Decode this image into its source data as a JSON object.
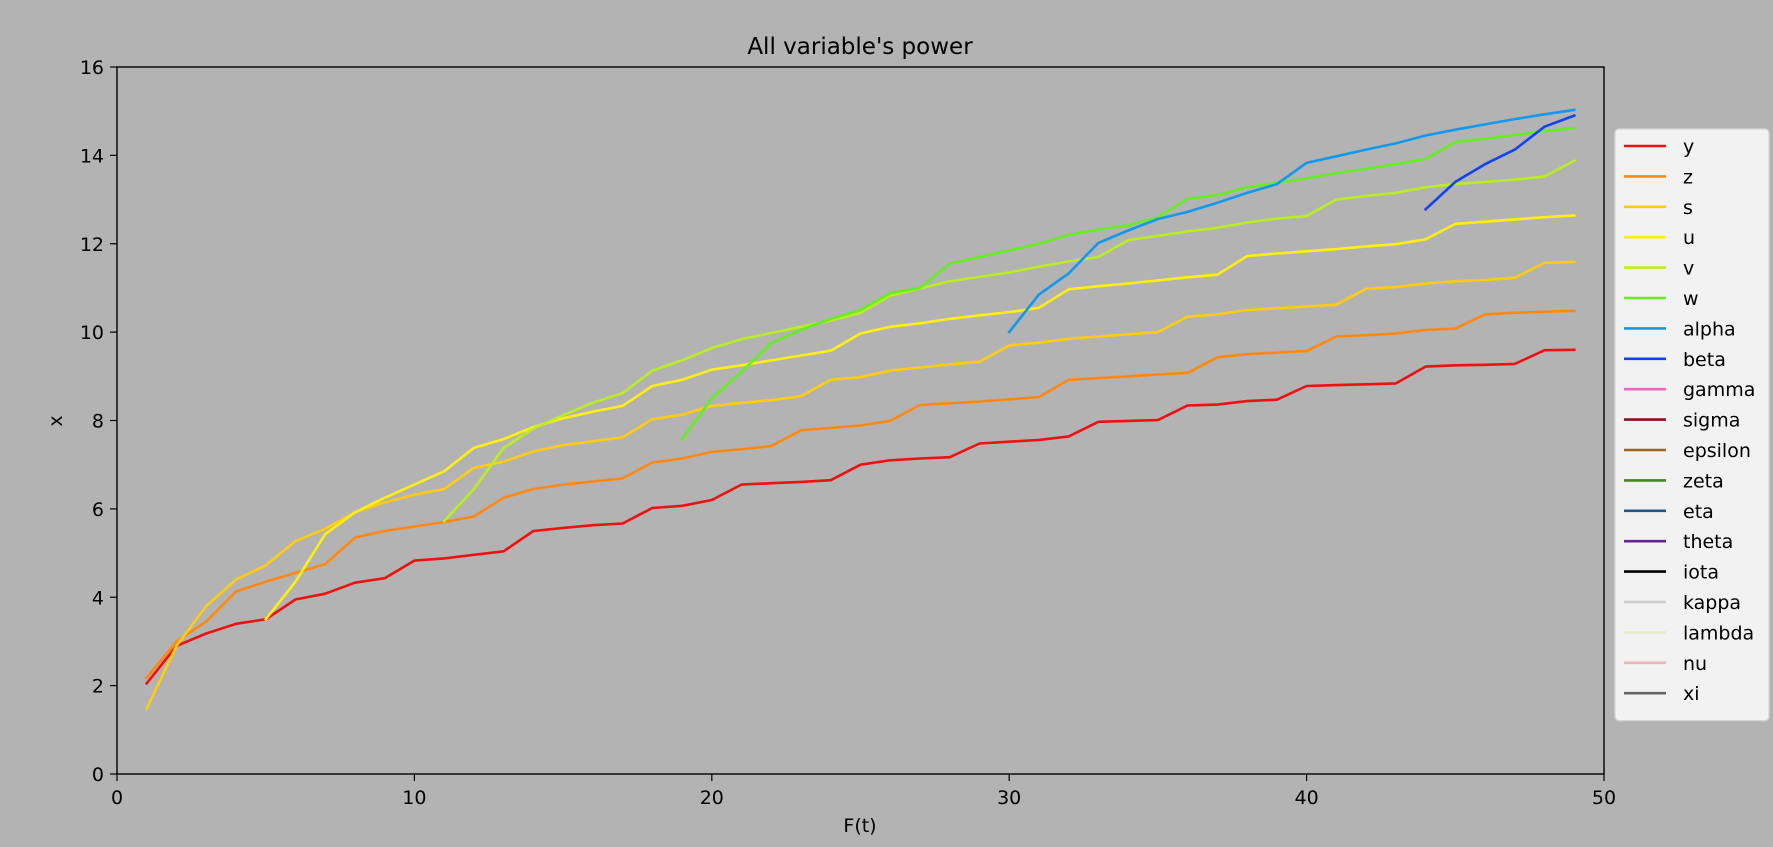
{
  "chart_data": {
    "type": "line",
    "title": "All variable's power",
    "xlabel": "F(t)",
    "ylabel": "x",
    "xlim": [
      0,
      50
    ],
    "ylim": [
      0,
      16
    ],
    "xticks": [
      0,
      10,
      20,
      30,
      40,
      50
    ],
    "yticks": [
      0,
      2,
      4,
      6,
      8,
      10,
      12,
      14,
      16
    ],
    "grid": false,
    "legend_position": "right",
    "background_color": "#b3b3b3",
    "series": [
      {
        "name": "y",
        "color": "#ee1111",
        "x": [
          1,
          2,
          3,
          4,
          5,
          6,
          7,
          8,
          9,
          10,
          11,
          12,
          13,
          14,
          15,
          16,
          17,
          18,
          19,
          20,
          21,
          22,
          23,
          24,
          25,
          26,
          27,
          28,
          29,
          30,
          31,
          32,
          33,
          34,
          35,
          36,
          37,
          38,
          39,
          40,
          41,
          42,
          43,
          44,
          45,
          46,
          47,
          48,
          49
        ],
        "y": [
          2.05,
          2.9,
          3.18,
          3.4,
          3.5,
          3.95,
          4.08,
          4.33,
          4.43,
          4.83,
          4.88,
          4.96,
          5.04,
          5.5,
          5.57,
          5.63,
          5.67,
          6.02,
          6.07,
          6.2,
          6.55,
          6.58,
          6.61,
          6.65,
          7.0,
          7.1,
          7.14,
          7.17,
          7.48,
          7.52,
          7.56,
          7.64,
          7.97,
          7.99,
          8.01,
          8.34,
          8.36,
          8.44,
          8.47,
          8.78,
          8.8,
          8.82,
          8.84,
          9.22,
          9.25,
          9.26,
          9.28,
          9.59,
          9.6
        ]
      },
      {
        "name": "z",
        "color": "#ff8811",
        "x": [
          1,
          2,
          3,
          4,
          5,
          6,
          7,
          8,
          9,
          10,
          11,
          12,
          13,
          14,
          15,
          16,
          17,
          18,
          19,
          20,
          21,
          22,
          23,
          24,
          25,
          26,
          27,
          28,
          29,
          30,
          31,
          32,
          33,
          34,
          35,
          36,
          37,
          38,
          39,
          40,
          41,
          42,
          43,
          44,
          45,
          46,
          47,
          48,
          49
        ],
        "y": [
          2.18,
          3.0,
          3.45,
          4.13,
          4.35,
          4.55,
          4.75,
          5.35,
          5.5,
          5.6,
          5.7,
          5.83,
          6.25,
          6.45,
          6.55,
          6.62,
          6.69,
          7.05,
          7.14,
          7.29,
          7.35,
          7.42,
          7.78,
          7.83,
          7.89,
          7.99,
          8.35,
          8.39,
          8.43,
          8.48,
          8.53,
          8.92,
          8.96,
          9.0,
          9.04,
          9.08,
          9.43,
          9.5,
          9.54,
          9.57,
          9.9,
          9.93,
          9.97,
          10.05,
          10.08,
          10.4,
          10.44,
          10.46,
          10.48
        ]
      },
      {
        "name": "s",
        "color": "#ffcc11",
        "x": [
          1,
          2,
          3,
          4,
          5,
          6,
          7,
          8,
          9,
          10,
          11,
          12,
          13,
          14,
          15,
          16,
          17,
          18,
          19,
          20,
          21,
          22,
          23,
          24,
          25,
          26,
          27,
          28,
          29,
          30,
          31,
          32,
          33,
          34,
          35,
          36,
          37,
          38,
          39,
          40,
          41,
          42,
          43,
          44,
          45,
          46,
          47,
          48,
          49
        ],
        "y": [
          1.48,
          2.9,
          3.8,
          4.4,
          4.72,
          5.27,
          5.55,
          5.92,
          6.15,
          6.32,
          6.45,
          6.93,
          7.07,
          7.3,
          7.44,
          7.53,
          7.62,
          8.03,
          8.13,
          8.33,
          8.4,
          8.46,
          8.55,
          8.92,
          8.98,
          9.13,
          9.2,
          9.27,
          9.33,
          9.7,
          9.76,
          9.85,
          9.9,
          9.95,
          10.0,
          10.35,
          10.4,
          10.5,
          10.54,
          10.58,
          10.62,
          10.98,
          11.02,
          11.1,
          11.15,
          11.18,
          11.23,
          11.57,
          11.59
        ]
      },
      {
        "name": "u",
        "color": "#ffee11",
        "x": [
          5,
          6,
          7,
          8,
          9,
          10,
          11,
          12,
          13,
          14,
          15,
          16,
          17,
          18,
          19,
          20,
          21,
          22,
          23,
          24,
          25,
          26,
          27,
          28,
          29,
          30,
          31,
          32,
          33,
          34,
          35,
          36,
          37,
          38,
          39,
          40,
          41,
          42,
          43,
          44,
          45,
          46,
          47,
          48,
          49
        ],
        "y": [
          3.5,
          4.35,
          5.43,
          5.92,
          6.25,
          6.55,
          6.85,
          7.38,
          7.58,
          7.85,
          8.05,
          8.2,
          8.33,
          8.78,
          8.92,
          9.15,
          9.25,
          9.36,
          9.47,
          9.58,
          9.97,
          10.12,
          10.2,
          10.3,
          10.38,
          10.45,
          10.55,
          10.97,
          11.04,
          11.1,
          11.17,
          11.24,
          11.3,
          11.72,
          11.78,
          11.83,
          11.88,
          11.94,
          11.99,
          12.1,
          12.45,
          12.5,
          12.55,
          12.6,
          12.64
        ]
      },
      {
        "name": "v",
        "color": "#bbee22",
        "x": [
          11,
          12,
          13,
          14,
          15,
          16,
          17,
          18,
          19,
          20,
          21,
          22,
          23,
          24,
          25,
          26,
          27,
          28,
          29,
          30,
          31,
          32,
          33,
          34,
          35,
          36,
          37,
          38,
          39,
          40,
          41,
          42,
          43,
          44,
          45,
          46,
          47,
          48,
          49
        ],
        "y": [
          5.72,
          6.45,
          7.38,
          7.82,
          8.12,
          8.4,
          8.62,
          9.13,
          9.36,
          9.64,
          9.84,
          9.98,
          10.12,
          10.26,
          10.44,
          10.82,
          10.99,
          11.15,
          11.25,
          11.35,
          11.48,
          11.6,
          11.7,
          12.08,
          12.18,
          12.28,
          12.36,
          12.48,
          12.57,
          12.63,
          13.0,
          13.08,
          13.15,
          13.28,
          13.35,
          13.4,
          13.45,
          13.52,
          13.88
        ]
      },
      {
        "name": "w",
        "color": "#66ee22",
        "x": [
          19,
          20,
          21,
          22,
          23,
          24,
          25,
          26,
          27,
          28,
          29,
          30,
          31,
          32,
          33,
          34,
          35,
          36,
          37,
          38,
          39,
          40,
          41,
          42,
          43,
          44,
          45,
          46,
          47,
          48,
          49
        ],
        "y": [
          7.58,
          8.5,
          9.1,
          9.75,
          10.05,
          10.3,
          10.5,
          10.88,
          11.0,
          11.55,
          11.7,
          11.85,
          12.0,
          12.2,
          12.32,
          12.42,
          12.6,
          13.02,
          13.1,
          13.28,
          13.38,
          13.48,
          13.6,
          13.7,
          13.8,
          13.92,
          14.3,
          14.38,
          14.46,
          14.55,
          14.62
        ]
      },
      {
        "name": "alpha",
        "color": "#1199ee",
        "x": [
          30,
          31,
          32,
          33,
          34,
          35,
          36,
          37,
          38,
          39,
          40,
          41,
          42,
          43,
          44,
          45,
          46,
          47,
          48,
          49
        ],
        "y": [
          10.0,
          10.85,
          11.33,
          12.02,
          12.3,
          12.56,
          12.72,
          12.93,
          13.15,
          13.35,
          13.83,
          13.98,
          14.13,
          14.27,
          14.45,
          14.58,
          14.7,
          14.82,
          14.93,
          15.03
        ]
      },
      {
        "name": "beta",
        "color": "#1144ee",
        "x": [
          44,
          45,
          46,
          47,
          48,
          49
        ],
        "y": [
          12.78,
          13.4,
          13.8,
          14.13,
          14.65,
          14.9
        ]
      },
      {
        "name": "gamma",
        "color": "#ee66bb",
        "x": [],
        "y": []
      },
      {
        "name": "sigma",
        "color": "#881122",
        "x": [],
        "y": []
      },
      {
        "name": "epsilon",
        "color": "#996622",
        "x": [],
        "y": []
      },
      {
        "name": "zeta",
        "color": "#448822",
        "x": [],
        "y": []
      },
      {
        "name": "eta",
        "color": "#225588",
        "x": [],
        "y": []
      },
      {
        "name": "theta",
        "color": "#662299",
        "x": [],
        "y": []
      },
      {
        "name": "iota",
        "color": "#000000",
        "x": [],
        "y": []
      },
      {
        "name": "kappa",
        "color": "#cccccc",
        "x": [],
        "y": []
      },
      {
        "name": "lambda",
        "color": "#e6ebc8",
        "x": [],
        "y": []
      },
      {
        "name": "nu",
        "color": "#f0b4b4",
        "x": [],
        "y": []
      },
      {
        "name": "xi",
        "color": "#666666",
        "x": [],
        "y": []
      }
    ]
  }
}
